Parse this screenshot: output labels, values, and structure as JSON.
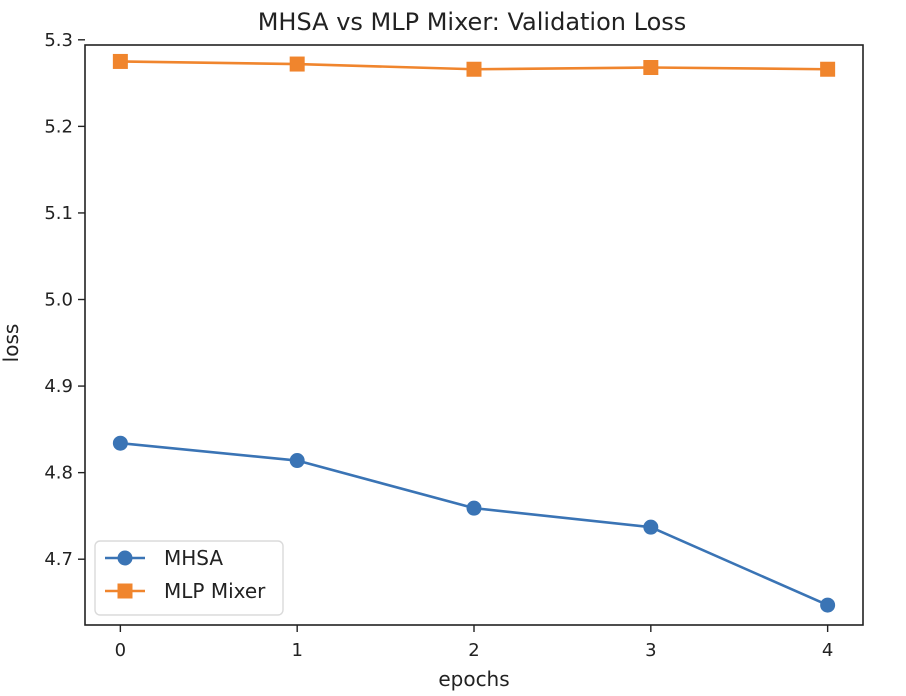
{
  "chart_data": {
    "type": "line",
    "title": "MHSA vs MLP Mixer: Validation Loss",
    "xlabel": "epochs",
    "ylabel": "loss",
    "x": [
      0,
      1,
      2,
      3,
      4
    ],
    "xlim": [
      -0.2,
      4.2
    ],
    "ylim": [
      4.624,
      5.294
    ],
    "xticks": [
      "0",
      "1",
      "2",
      "3",
      "4"
    ],
    "yticks": [
      "4.7",
      "4.8",
      "4.9",
      "5.0",
      "5.1",
      "5.2",
      "5.3"
    ],
    "grid": false,
    "legend_position": "lower-left",
    "series": [
      {
        "name": "MHSA",
        "color": "#3a74b5",
        "marker": "circle",
        "values": [
          4.834,
          4.814,
          4.759,
          4.737,
          4.647
        ]
      },
      {
        "name": "MLP Mixer",
        "color": "#f0852d",
        "marker": "square",
        "values": [
          5.275,
          5.272,
          5.266,
          5.268,
          5.266
        ]
      }
    ]
  }
}
